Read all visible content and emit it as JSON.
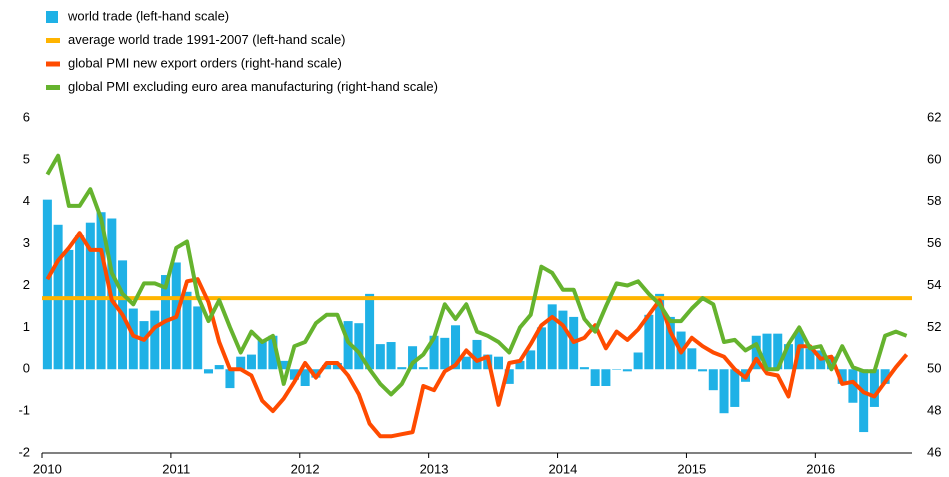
{
  "chart_data": {
    "type": "bar_line",
    "categories": [
      "2010",
      null,
      null,
      null,
      null,
      null,
      null,
      null,
      null,
      null,
      null,
      null,
      "2011",
      null,
      null,
      null,
      null,
      null,
      null,
      null,
      null,
      null,
      null,
      null,
      "2012",
      null,
      null,
      null,
      null,
      null,
      null,
      null,
      null,
      null,
      null,
      null,
      "2013",
      null,
      null,
      null,
      null,
      null,
      null,
      null,
      null,
      null,
      null,
      null,
      "2014",
      null,
      null,
      null,
      null,
      null,
      null,
      null,
      null,
      null,
      null,
      null,
      "2015",
      null,
      null,
      null,
      null,
      null,
      null,
      null,
      null,
      null,
      null,
      null,
      "2016",
      null,
      null,
      null,
      null,
      null,
      null,
      null,
      null
    ],
    "series": [
      {
        "name": "world trade (left-hand scale)",
        "kind": "bar",
        "color": "#1fb1e6",
        "values": [
          4.05,
          3.45,
          2.85,
          3.2,
          3.5,
          3.75,
          3.6,
          2.6,
          1.45,
          1.15,
          1.4,
          2.25,
          2.55,
          1.85,
          1.5,
          -0.1,
          0.1,
          -0.45,
          0.3,
          0.35,
          0.7,
          0.8,
          0.2,
          -0.25,
          -0.4,
          -0.2,
          0.1,
          0.15,
          1.15,
          1.1,
          1.8,
          0.6,
          0.65,
          0.05,
          0.55,
          0.05,
          0.8,
          0.75,
          1.05,
          0.3,
          0.7,
          0.35,
          0.3,
          -0.35,
          0.2,
          0.45,
          1.0,
          1.55,
          1.4,
          1.25,
          0.05,
          -0.4,
          -0.4,
          0.0,
          -0.05,
          0.4,
          1.3,
          1.8,
          1.25,
          0.9,
          0.5,
          -0.05,
          -0.5,
          -1.05,
          -0.9,
          -0.3,
          0.8,
          0.85,
          0.85,
          0.6,
          0.9,
          0.5,
          0.45,
          0.3,
          -0.35,
          -0.8,
          -1.5,
          -0.9,
          -0.35,
          null,
          null
        ]
      },
      {
        "name": "average world trade 1991-2007 (left-hand scale)",
        "kind": "hline",
        "color": "#ffb400",
        "value": 1.7
      },
      {
        "name": "global PMI new export orders (right-hand scale)",
        "kind": "line",
        "axis": "y2",
        "color": "#ff4b00",
        "values": [
          54.3,
          55.2,
          55.8,
          56.5,
          55.7,
          55.7,
          53.3,
          52.6,
          51.6,
          51.4,
          52.0,
          52.3,
          52.5,
          54.2,
          54.3,
          53.2,
          51.3,
          50.0,
          50.0,
          49.7,
          48.5,
          48.0,
          48.6,
          49.4,
          50.3,
          49.6,
          50.3,
          50.3,
          49.7,
          48.8,
          47.4,
          46.8,
          46.8,
          46.9,
          47.0,
          49.2,
          49.0,
          49.9,
          50.2,
          50.9,
          50.4,
          50.6,
          48.3,
          50.3,
          50.4,
          51.2,
          52.1,
          52.5,
          52.1,
          51.3,
          51.5,
          52.1,
          51.0,
          51.8,
          51.4,
          51.9,
          52.6,
          53.3,
          51.8,
          50.8,
          51.5,
          51.1,
          50.8,
          50.6,
          50.0,
          49.6,
          50.5,
          49.8,
          49.7,
          48.7,
          51.1,
          51.1,
          50.5,
          50.6,
          49.3,
          49.4,
          48.9,
          48.7,
          49.4,
          50.1,
          50.7
        ]
      },
      {
        "name": "global PMI excluding euro area manufacturing (right-hand scale)",
        "kind": "line",
        "axis": "y2",
        "color": "#65b32e",
        "values": [
          59.3,
          60.2,
          57.8,
          57.8,
          58.6,
          57.2,
          54.6,
          53.6,
          53.1,
          54.1,
          54.1,
          53.9,
          55.8,
          56.1,
          53.5,
          52.3,
          53.3,
          52.0,
          50.8,
          51.8,
          51.3,
          51.6,
          49.3,
          51.1,
          51.3,
          52.2,
          52.6,
          52.6,
          51.3,
          50.8,
          50.0,
          49.3,
          48.8,
          49.3,
          50.3,
          50.7,
          51.5,
          53.1,
          52.4,
          53.1,
          51.8,
          51.6,
          51.3,
          50.8,
          52.0,
          52.6,
          54.9,
          54.6,
          53.8,
          53.8,
          52.4,
          51.8,
          53.0,
          54.1,
          54.0,
          54.2,
          53.6,
          53.1,
          52.3,
          52.3,
          52.9,
          53.4,
          53.1,
          51.3,
          51.4,
          50.9,
          51.2,
          50.0,
          50.0,
          51.2,
          52.0,
          51.0,
          51.1,
          50.0,
          51.1,
          50.1,
          49.9,
          49.9,
          51.6,
          51.8,
          51.6
        ]
      }
    ],
    "ylim": [
      -2,
      6
    ],
    "yticks": [
      -2,
      -1,
      0,
      1,
      2,
      3,
      4,
      5,
      6
    ],
    "y2lim": [
      46,
      62
    ],
    "y2ticks": [
      46,
      48,
      50,
      52,
      54,
      56,
      58,
      60,
      62
    ],
    "grid": false
  }
}
